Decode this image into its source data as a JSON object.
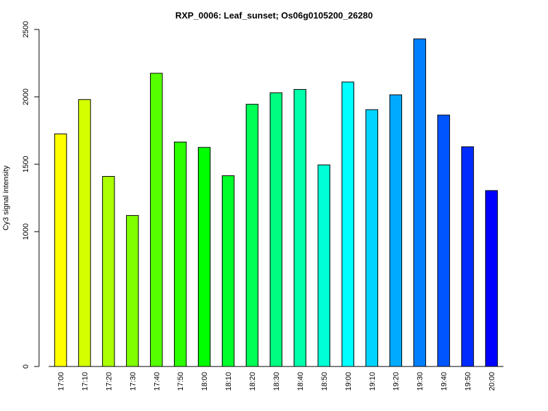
{
  "chart_data": {
    "type": "bar",
    "title": "RXP_0006: Leaf_sunset; Os06g0105200_26280",
    "xlabel": "",
    "ylabel": "Cy3 signal intensity",
    "ylim": [
      0,
      2500
    ],
    "yticks": [
      "0",
      "1000",
      "1500",
      "2000",
      "2500"
    ],
    "yticks_values": [
      0,
      1000,
      1500,
      2000,
      2500
    ],
    "categories": [
      "17:00",
      "17:10",
      "17:20",
      "17:30",
      "17:40",
      "17:50",
      "18:00",
      "18:10",
      "18:20",
      "18:30",
      "18:40",
      "18:50",
      "19:00",
      "19:10",
      "19:20",
      "19:30",
      "19:40",
      "19:50",
      "20:00"
    ],
    "values": [
      1725,
      1980,
      1410,
      1120,
      2175,
      1665,
      1625,
      1415,
      1945,
      2030,
      2055,
      1495,
      2110,
      1905,
      2015,
      2430,
      1865,
      1630,
      1305
    ],
    "colors": [
      "#ffff00",
      "#d4ff00",
      "#aaff00",
      "#80ff00",
      "#55ff00",
      "#2bff00",
      "#00ff00",
      "#00ff2b",
      "#00ff55",
      "#00ff80",
      "#00ffaa",
      "#00ffd4",
      "#00ffff",
      "#00d4ff",
      "#00aaff",
      "#0080ff",
      "#0055ff",
      "#002bff",
      "#0000ff"
    ],
    "grid": false,
    "legend": "none"
  }
}
